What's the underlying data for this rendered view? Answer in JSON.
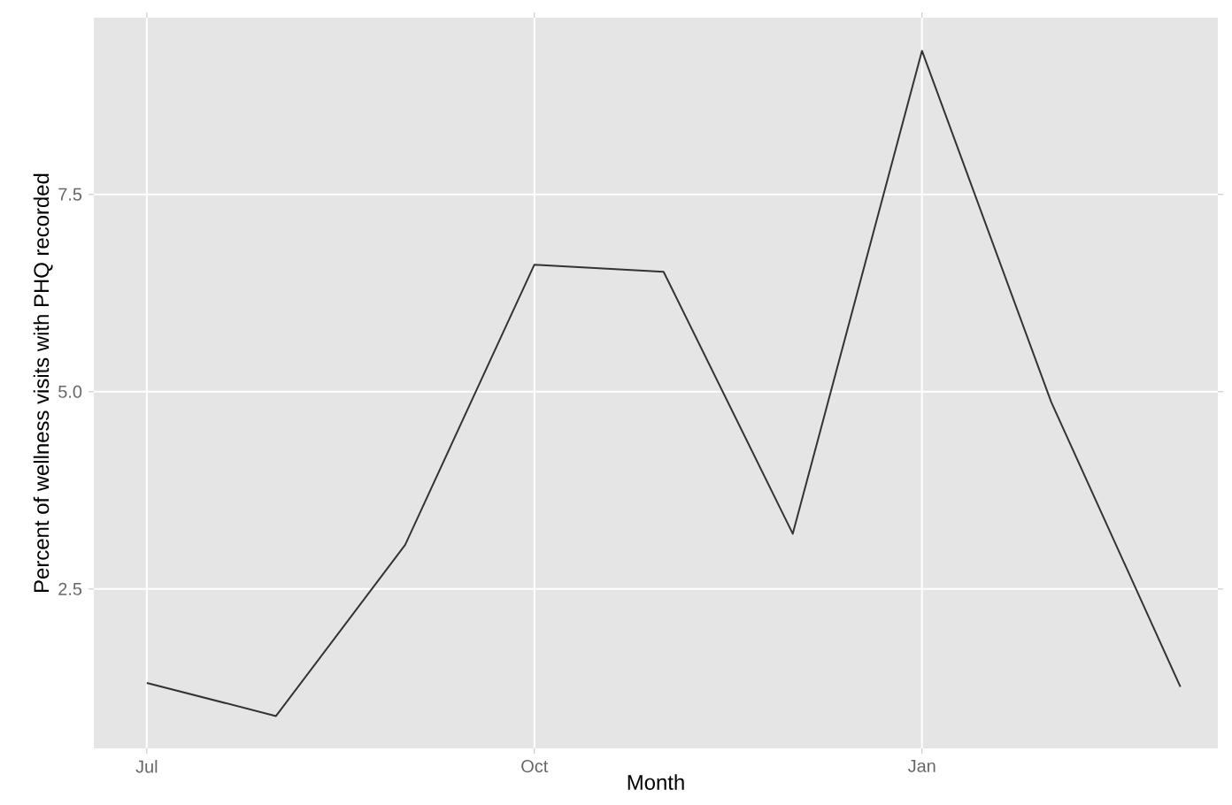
{
  "chart_data": {
    "type": "line",
    "xlabel": "Month",
    "ylabel": "Percent of wellness visits with PHQ recorded",
    "categories": [
      "Jul",
      null,
      null,
      "Oct",
      null,
      null,
      "Jan",
      null,
      null
    ],
    "series": [
      {
        "color": "#333333",
        "values": [
          1.31,
          0.89,
          3.06,
          6.61,
          6.52,
          3.2,
          9.32,
          4.87,
          1.26
        ]
      }
    ],
    "ylim": [
      0.48,
      9.74
    ],
    "yticks": [
      {
        "value": 2.5,
        "label": "2.5"
      },
      {
        "value": 5.0,
        "label": "5.0"
      },
      {
        "value": 7.5,
        "label": "7.5"
      }
    ],
    "grid": true,
    "marker": "none",
    "line_style": "solid"
  }
}
